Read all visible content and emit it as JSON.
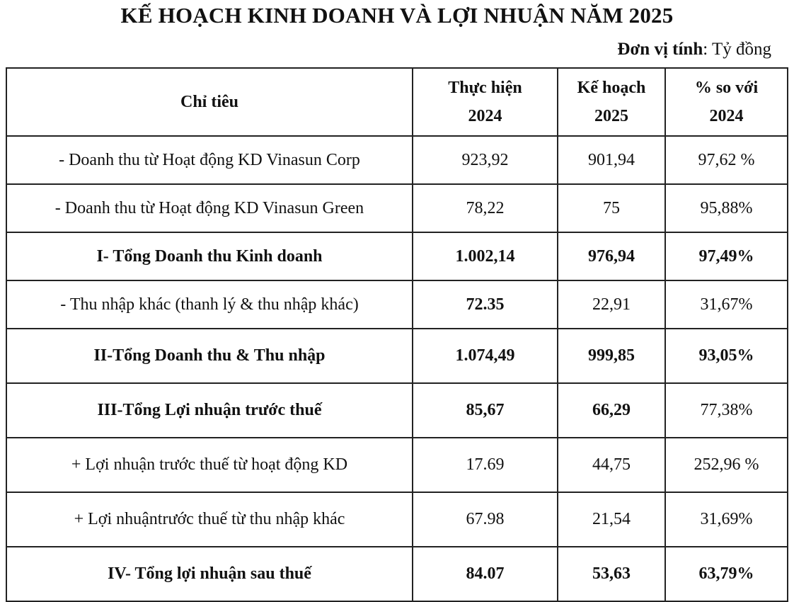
{
  "title": "KẾ HOẠCH KINH DOANH VÀ LỢI NHUẬN NĂM 2025",
  "unit_label": "Đơn vị tính",
  "unit_value": ": Tỷ đồng",
  "table": {
    "headers": [
      "Chỉ tiêu",
      "Thực hiện",
      "2024",
      "Kế hoạch",
      "2025",
      "% so với",
      "2024"
    ],
    "rows": [
      [
        "- Doanh thu từ Hoạt động KD Vinasun Corp",
        "923,92",
        "901,94",
        "97,62 %"
      ],
      [
        "- Doanh thu từ Hoạt động KD Vinasun Green",
        "78,22",
        "75",
        "95,88%"
      ],
      [
        "I-  Tổng Doanh thu Kinh doanh",
        "1.002,14",
        "976,94",
        "97,49%"
      ],
      [
        "- Thu nhập khác (thanh lý & thu nhập khác)",
        "72.35",
        "22,91",
        "31,67%"
      ],
      [
        "II-Tổng Doanh thu & Thu nhập",
        "1.074,49",
        "999,85",
        "93,05%"
      ],
      [
        "III-Tổng Lợi nhuận trước thuế",
        "85,67",
        "66,29",
        "77,38%"
      ],
      [
        "+ Lợi nhuận trước thuế từ hoạt động KD",
        "17.69",
        "44,75",
        "252,96 %"
      ],
      [
        "+ Lợi nhuậntrước thuế từ thu nhập khác",
        "67.98",
        "21,54",
        "31,69%"
      ],
      [
        "IV- Tổng lợi nhuận sau thuế",
        "84.07",
        "53,63",
        "63,79%"
      ]
    ]
  }
}
